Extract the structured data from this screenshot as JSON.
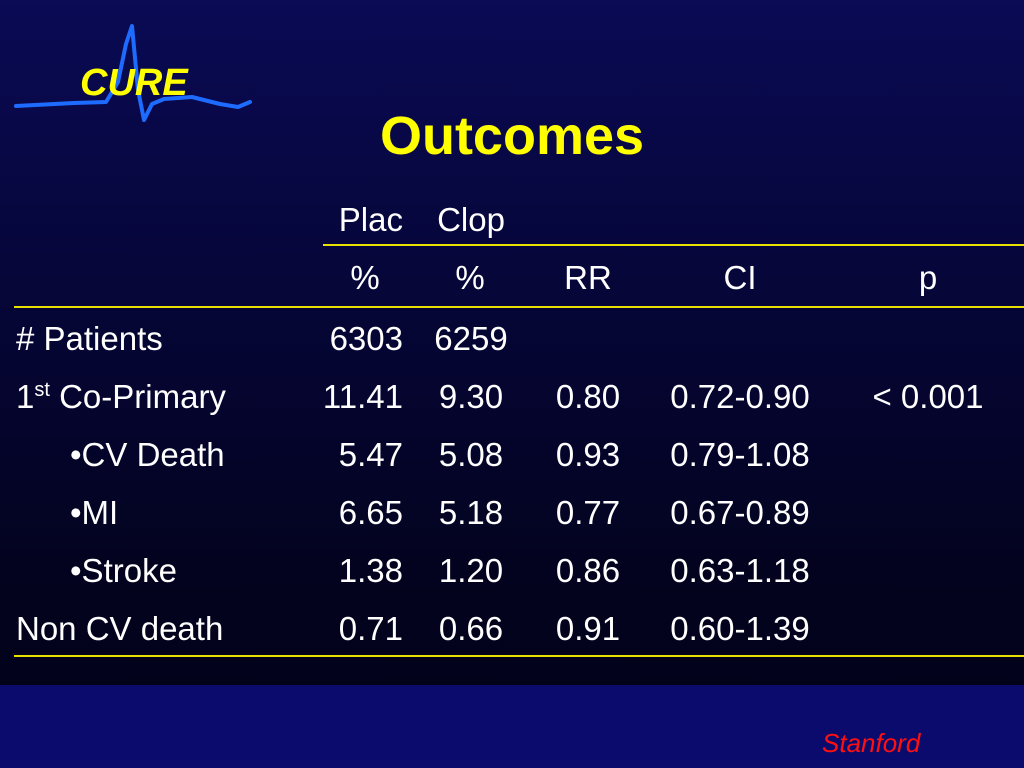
{
  "logo": {
    "text": "CURE",
    "accent": "#ffff00",
    "wave_color": "#1e6cff"
  },
  "title": "Outcomes",
  "table": {
    "header_row1": [
      "Plac",
      "Clop"
    ],
    "header_row2": [
      "%",
      "%",
      "RR",
      "CI",
      "p"
    ],
    "rows": [
      {
        "label": "# Patients",
        "values": [
          "6303",
          "6259",
          "",
          "",
          ""
        ]
      },
      {
        "label_pre": "1",
        "label_sup": "st",
        "label_post": " Co-Primary",
        "values": [
          "11.41",
          "9.30",
          "0.80",
          "0.72-0.90",
          "< 0.001"
        ]
      },
      {
        "label": "•CV Death",
        "values": [
          "5.47",
          "5.08",
          "0.93",
          "0.79-1.08",
          ""
        ]
      },
      {
        "label": "•MI",
        "values": [
          "6.65",
          "5.18",
          "0.77",
          "0.67-0.89",
          ""
        ]
      },
      {
        "label": "•Stroke",
        "values": [
          "1.38",
          "1.20",
          "0.86",
          "0.63-1.18",
          ""
        ]
      },
      {
        "label": "Non CV death",
        "values": [
          "0.71",
          "0.66",
          "0.91",
          "0.60-1.39",
          ""
        ]
      }
    ]
  },
  "footer": {
    "brand": "Stanford",
    "color": "#ff1010"
  },
  "colors": {
    "background": "#06063a",
    "title": "#ffff00",
    "rule": "#e8e000",
    "text": "#ffffff"
  }
}
